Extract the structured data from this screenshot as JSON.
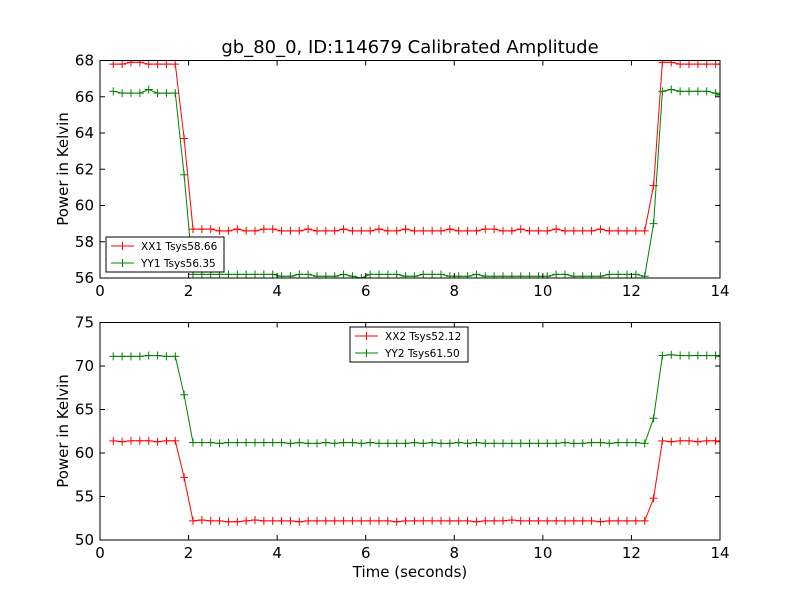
{
  "chart_data": [
    {
      "type": "line",
      "title": "gb_80_0, ID:114679 Calibrated Amplitude",
      "xlabel": "",
      "ylabel": "Power in Kelvin",
      "xlim": [
        0,
        14
      ],
      "ylim": [
        56,
        68
      ],
      "xticks": [
        "0",
        "2",
        "4",
        "6",
        "8",
        "10",
        "12",
        "14"
      ],
      "yticks": [
        "56",
        "58",
        "60",
        "62",
        "64",
        "66",
        "68"
      ],
      "legend_position": "lower-left",
      "series": [
        {
          "name": "XX1 Tsys58.66",
          "color": "#ff0000",
          "x": [
            0.3,
            0.5,
            0.7,
            0.9,
            1.1,
            1.3,
            1.5,
            1.7,
            1.9,
            2.1,
            2.3,
            2.5,
            2.7,
            2.9,
            3.1,
            3.3,
            3.5,
            3.7,
            3.9,
            4.1,
            4.3,
            4.5,
            4.7,
            4.9,
            5.1,
            5.3,
            5.5,
            5.7,
            5.9,
            6.1,
            6.3,
            6.5,
            6.7,
            6.9,
            7.1,
            7.3,
            7.5,
            7.7,
            7.9,
            8.1,
            8.3,
            8.5,
            8.7,
            8.9,
            9.1,
            9.3,
            9.5,
            9.7,
            9.9,
            10.1,
            10.3,
            10.5,
            10.7,
            10.9,
            11.1,
            11.3,
            11.5,
            11.7,
            11.9,
            12.1,
            12.3,
            12.5,
            12.7,
            12.9,
            13.1,
            13.3,
            13.5,
            13.7,
            13.9,
            14.0
          ],
          "y": [
            67.8,
            67.8,
            67.9,
            67.9,
            67.8,
            67.8,
            67.8,
            67.8,
            63.7,
            58.7,
            58.7,
            58.7,
            58.6,
            58.6,
            58.7,
            58.6,
            58.6,
            58.7,
            58.7,
            58.6,
            58.6,
            58.6,
            58.7,
            58.6,
            58.6,
            58.6,
            58.7,
            58.6,
            58.6,
            58.6,
            58.7,
            58.6,
            58.6,
            58.7,
            58.6,
            58.6,
            58.6,
            58.6,
            58.7,
            58.6,
            58.6,
            58.6,
            58.7,
            58.7,
            58.6,
            58.6,
            58.7,
            58.6,
            58.6,
            58.6,
            58.7,
            58.6,
            58.6,
            58.6,
            58.6,
            58.7,
            58.6,
            58.6,
            58.6,
            58.6,
            58.6,
            61.1,
            67.9,
            67.9,
            67.8,
            67.8,
            67.8,
            67.8,
            67.8,
            67.8
          ]
        },
        {
          "name": "YY1 Tsys56.35",
          "color": "#008000",
          "x": [
            0.3,
            0.5,
            0.7,
            0.9,
            1.1,
            1.3,
            1.5,
            1.7,
            1.9,
            2.1,
            2.3,
            2.5,
            2.7,
            2.9,
            3.1,
            3.3,
            3.5,
            3.7,
            3.9,
            4.1,
            4.3,
            4.5,
            4.7,
            4.9,
            5.1,
            5.3,
            5.5,
            5.7,
            5.9,
            6.1,
            6.3,
            6.5,
            6.7,
            6.9,
            7.1,
            7.3,
            7.5,
            7.7,
            7.9,
            8.1,
            8.3,
            8.5,
            8.7,
            8.9,
            9.1,
            9.3,
            9.5,
            9.7,
            9.9,
            10.1,
            10.3,
            10.5,
            10.7,
            10.9,
            11.1,
            11.3,
            11.5,
            11.7,
            11.9,
            12.1,
            12.3,
            12.5,
            12.7,
            12.9,
            13.1,
            13.3,
            13.5,
            13.7,
            13.9,
            14.0
          ],
          "y": [
            66.3,
            66.2,
            66.2,
            66.2,
            66.4,
            66.2,
            66.2,
            66.2,
            61.7,
            56.2,
            56.2,
            56.2,
            56.2,
            56.2,
            56.2,
            56.2,
            56.2,
            56.2,
            56.2,
            56.1,
            56.1,
            56.2,
            56.2,
            56.1,
            56.1,
            56.1,
            56.2,
            56.1,
            56.0,
            56.2,
            56.2,
            56.2,
            56.2,
            56.1,
            56.1,
            56.2,
            56.2,
            56.2,
            56.1,
            56.1,
            56.1,
            56.2,
            56.1,
            56.1,
            56.1,
            56.1,
            56.1,
            56.1,
            56.1,
            56.1,
            56.2,
            56.2,
            56.1,
            56.1,
            56.1,
            56.1,
            56.2,
            56.2,
            56.2,
            56.2,
            56.1,
            59.0,
            66.3,
            66.4,
            66.3,
            66.3,
            66.3,
            66.3,
            66.2,
            66.1
          ]
        }
      ]
    },
    {
      "type": "line",
      "title": "",
      "xlabel": "Time (seconds)",
      "ylabel": "Power in Kelvin",
      "xlim": [
        0,
        14
      ],
      "ylim": [
        50,
        75
      ],
      "xticks": [
        "0",
        "2",
        "4",
        "6",
        "8",
        "10",
        "12",
        "14"
      ],
      "yticks": [
        "50",
        "55",
        "60",
        "65",
        "70",
        "75"
      ],
      "legend_position": "upper-center",
      "series": [
        {
          "name": "XX2 Tsys52.12",
          "color": "#ff0000",
          "x": [
            0.3,
            0.5,
            0.7,
            0.9,
            1.1,
            1.3,
            1.5,
            1.7,
            1.9,
            2.1,
            2.3,
            2.5,
            2.7,
            2.9,
            3.1,
            3.3,
            3.5,
            3.7,
            3.9,
            4.1,
            4.3,
            4.5,
            4.7,
            4.9,
            5.1,
            5.3,
            5.5,
            5.7,
            5.9,
            6.1,
            6.3,
            6.5,
            6.7,
            6.9,
            7.1,
            7.3,
            7.5,
            7.7,
            7.9,
            8.1,
            8.3,
            8.5,
            8.7,
            8.9,
            9.1,
            9.3,
            9.5,
            9.7,
            9.9,
            10.1,
            10.3,
            10.5,
            10.7,
            10.9,
            11.1,
            11.3,
            11.5,
            11.7,
            11.9,
            12.1,
            12.3,
            12.5,
            12.7,
            12.9,
            13.1,
            13.3,
            13.5,
            13.7,
            13.9,
            14.0
          ],
          "y": [
            61.4,
            61.3,
            61.4,
            61.4,
            61.4,
            61.3,
            61.4,
            61.4,
            57.2,
            52.2,
            52.3,
            52.2,
            52.2,
            52.1,
            52.1,
            52.2,
            52.3,
            52.2,
            52.2,
            52.2,
            52.2,
            52.1,
            52.2,
            52.2,
            52.2,
            52.2,
            52.2,
            52.2,
            52.2,
            52.2,
            52.2,
            52.2,
            52.1,
            52.2,
            52.2,
            52.2,
            52.2,
            52.2,
            52.2,
            52.2,
            52.2,
            52.1,
            52.2,
            52.2,
            52.2,
            52.3,
            52.2,
            52.2,
            52.2,
            52.2,
            52.2,
            52.2,
            52.2,
            52.2,
            52.2,
            52.1,
            52.2,
            52.2,
            52.2,
            52.2,
            52.2,
            54.8,
            61.4,
            61.3,
            61.4,
            61.4,
            61.3,
            61.4,
            61.4,
            61.3
          ]
        },
        {
          "name": "YY2 Tsys61.50",
          "color": "#008000",
          "x": [
            0.3,
            0.5,
            0.7,
            0.9,
            1.1,
            1.3,
            1.5,
            1.7,
            1.9,
            2.1,
            2.3,
            2.5,
            2.7,
            2.9,
            3.1,
            3.3,
            3.5,
            3.7,
            3.9,
            4.1,
            4.3,
            4.5,
            4.7,
            4.9,
            5.1,
            5.3,
            5.5,
            5.7,
            5.9,
            6.1,
            6.3,
            6.5,
            6.7,
            6.9,
            7.1,
            7.3,
            7.5,
            7.7,
            7.9,
            8.1,
            8.3,
            8.5,
            8.7,
            8.9,
            9.1,
            9.3,
            9.5,
            9.7,
            9.9,
            10.1,
            10.3,
            10.5,
            10.7,
            10.9,
            11.1,
            11.3,
            11.5,
            11.7,
            11.9,
            12.1,
            12.3,
            12.5,
            12.7,
            12.9,
            13.1,
            13.3,
            13.5,
            13.7,
            13.9,
            14.0
          ],
          "y": [
            71.1,
            71.1,
            71.1,
            71.1,
            71.2,
            71.2,
            71.1,
            71.1,
            66.7,
            61.2,
            61.2,
            61.2,
            61.1,
            61.2,
            61.2,
            61.2,
            61.2,
            61.2,
            61.2,
            61.2,
            61.1,
            61.2,
            61.1,
            61.1,
            61.2,
            61.1,
            61.2,
            61.2,
            61.1,
            61.2,
            61.1,
            61.1,
            61.1,
            61.1,
            61.2,
            61.1,
            61.2,
            61.1,
            61.1,
            61.2,
            61.1,
            61.2,
            61.1,
            61.1,
            61.1,
            61.1,
            61.1,
            61.1,
            61.1,
            61.1,
            61.1,
            61.2,
            61.1,
            61.1,
            61.2,
            61.2,
            61.1,
            61.2,
            61.2,
            61.2,
            61.1,
            64.0,
            71.2,
            71.3,
            71.2,
            71.2,
            71.2,
            71.2,
            71.2,
            71.1
          ]
        }
      ]
    }
  ]
}
